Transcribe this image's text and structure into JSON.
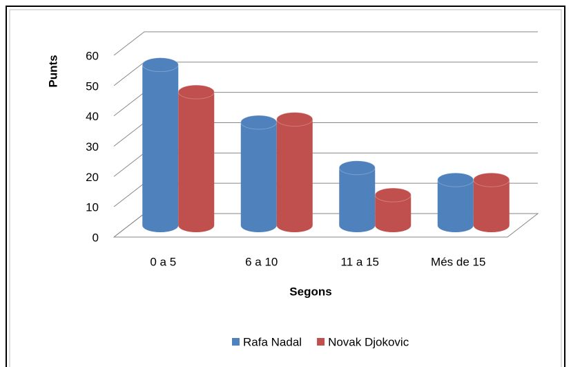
{
  "chart_data": {
    "type": "bar3d",
    "x_label": "Segons",
    "y_label": "Punts",
    "categories": [
      "0 a 5",
      "6 a 10",
      "11 a 15",
      "Més de 15"
    ],
    "series": [
      {
        "name": "Rafa Nadal",
        "color": "#4f81bd",
        "values": [
          53,
          34,
          19,
          15
        ]
      },
      {
        "name": "Novak Djokovic",
        "color": "#c0504d",
        "values": [
          44,
          35,
          10,
          15
        ]
      }
    ],
    "ylim": [
      0,
      60
    ],
    "yticks": [
      0,
      10,
      20,
      30,
      40,
      50,
      60
    ],
    "grid": true,
    "legend": "bottom"
  }
}
